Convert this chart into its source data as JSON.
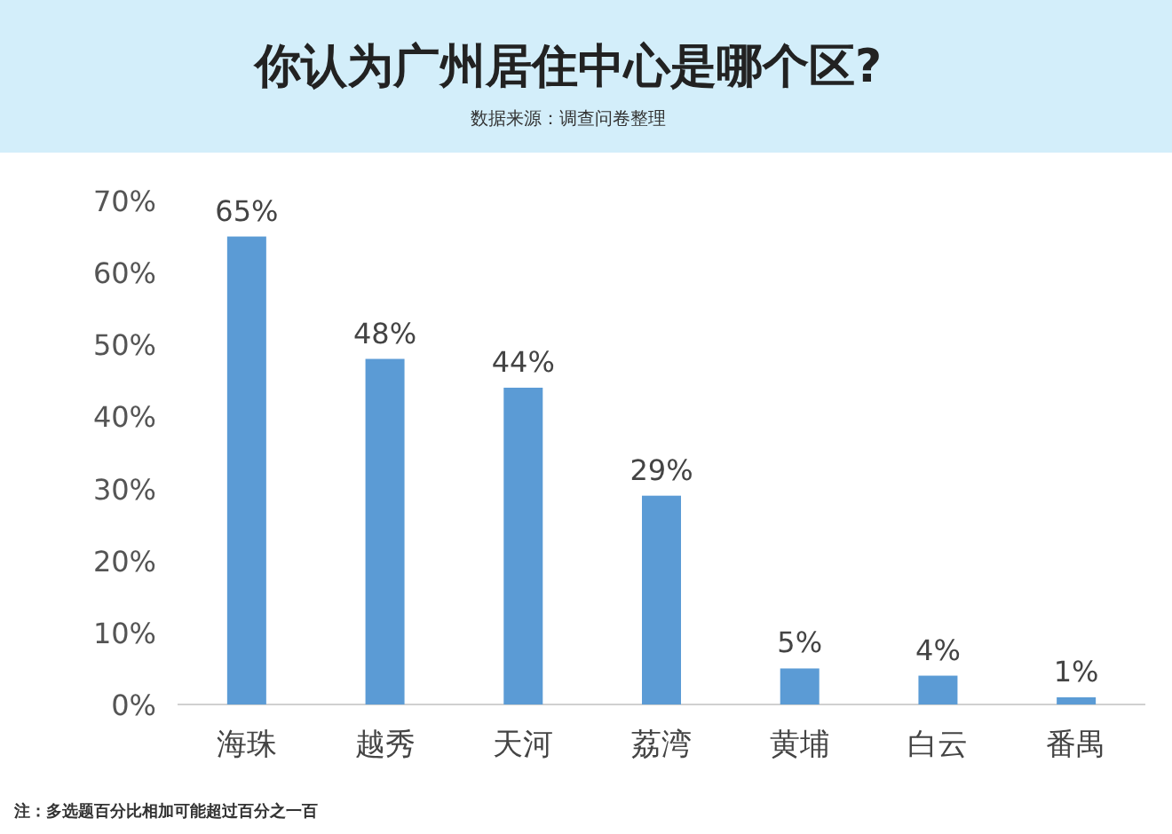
{
  "chart_data": {
    "type": "bar",
    "title": "你认为广州居住中心是哪个区?",
    "subtitle": "数据来源：调查问卷整理",
    "annotations": [
      "注：多选题百分比相加可能超过百分之一百"
    ],
    "categories": [
      "海珠",
      "越秀",
      "天河",
      "荔湾",
      "黄埔",
      "白云",
      "番禺"
    ],
    "values": [
      65,
      48,
      44,
      29,
      5,
      4,
      1
    ],
    "value_labels": [
      "65%",
      "48%",
      "44%",
      "29%",
      "5%",
      "4%",
      "1%"
    ],
    "color": "#5b9bd5",
    "ylim": [
      0,
      70
    ],
    "yticks": [
      {
        "value": 0,
        "label": "0%"
      },
      {
        "value": 10,
        "label": "10%"
      },
      {
        "value": 20,
        "label": "20%"
      },
      {
        "value": 30,
        "label": "30%"
      },
      {
        "value": 40,
        "label": "40%"
      },
      {
        "value": 50,
        "label": "50%"
      },
      {
        "value": 60,
        "label": "60%"
      },
      {
        "value": 70,
        "label": "70%"
      }
    ]
  }
}
